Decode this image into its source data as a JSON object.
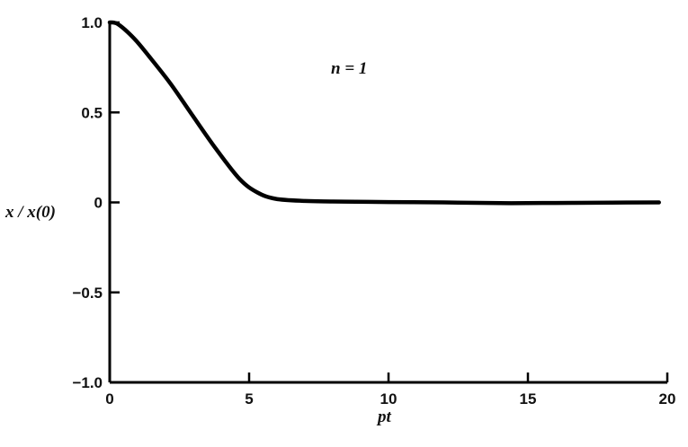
{
  "chart_data": {
    "type": "line",
    "title": "",
    "annotation": "n = 1",
    "xlabel": "pt",
    "ylabel": "x / x(0)",
    "xlim": [
      0,
      20
    ],
    "ylim": [
      -1.0,
      1.0
    ],
    "xticks": [
      0,
      5,
      10,
      15,
      20
    ],
    "xtick_labels": [
      "0",
      "5",
      "10",
      "15",
      "20"
    ],
    "yticks": [
      1.0,
      0.5,
      0,
      -0.5,
      -1.0
    ],
    "ytick_labels": [
      "1.0",
      "0.5",
      "0",
      "−0.5",
      "−1.0"
    ],
    "grid": false,
    "series": [
      {
        "color": "#000000",
        "x": [
          0,
          0.3,
          0.88,
          1.42,
          2.18,
          2.94,
          3.8,
          4.66,
          5.3,
          5.95,
          7,
          8,
          10,
          12,
          14,
          16,
          18,
          19.7
        ],
        "y": [
          1.0,
          0.99,
          0.91,
          0.81,
          0.66,
          0.49,
          0.3,
          0.13,
          0.055,
          0.02,
          0.008,
          0.005,
          0.002,
          0.0,
          -0.004,
          -0.003,
          -0.001,
          0.0
        ]
      }
    ]
  }
}
